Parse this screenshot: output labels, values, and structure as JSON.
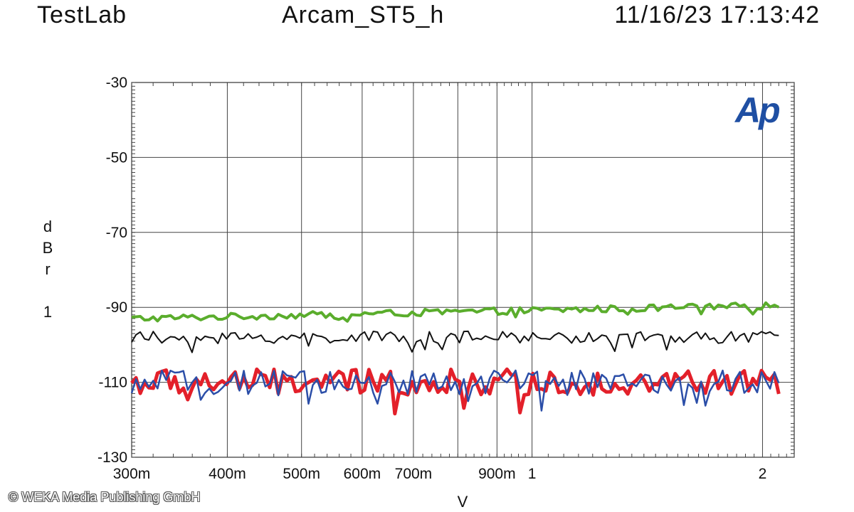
{
  "header": {
    "lab": "TestLab",
    "title": "Arcam_ST5_h",
    "timestamp": "11/16/23 17:13:42"
  },
  "logo": {
    "text": "Ap",
    "color": "#1f4fa3"
  },
  "copyright": "© WEKA Media Publishing GmbH",
  "chart_data": {
    "type": "line",
    "title": "Arcam_ST5_h",
    "xlabel": "V",
    "ylabel": "dBr 1",
    "xscale": "log",
    "xlim": [
      0.3,
      2.2
    ],
    "ylim": [
      -130,
      -30
    ],
    "grid": true,
    "x_ticks": [
      {
        "value": 0.3,
        "label": "300m"
      },
      {
        "value": 0.4,
        "label": "400m"
      },
      {
        "value": 0.5,
        "label": "500m"
      },
      {
        "value": 0.6,
        "label": "600m"
      },
      {
        "value": 0.7,
        "label": "700m"
      },
      {
        "value": 0.9,
        "label": "900m"
      },
      {
        "value": 1.0,
        "label": "1"
      },
      {
        "value": 2.0,
        "label": "2"
      }
    ],
    "x_grid_only": [
      0.8
    ],
    "y_ticks": [
      -30,
      -50,
      -70,
      -90,
      -110,
      -130
    ],
    "series": [
      {
        "color": "#5aad2c",
        "width": 4,
        "x_range": [
          0.3,
          2.1
        ],
        "mean": -93,
        "end_mean": -89.5,
        "amplitude": 0.9
      },
      {
        "color": "#111111",
        "width": 2,
        "x_range": [
          0.3,
          2.1
        ],
        "mean": -98,
        "end_mean": -98,
        "amplitude": 1.6
      },
      {
        "color": "#e3202a",
        "width": 5,
        "x_range": [
          0.3,
          2.1
        ],
        "mean": -110,
        "end_mean": -110,
        "amplitude": 3.5
      },
      {
        "color": "#2b4ea8",
        "width": 2.5,
        "x_range": [
          0.3,
          2.1
        ],
        "mean": -110,
        "end_mean": -110,
        "amplitude": 3.2
      }
    ]
  }
}
